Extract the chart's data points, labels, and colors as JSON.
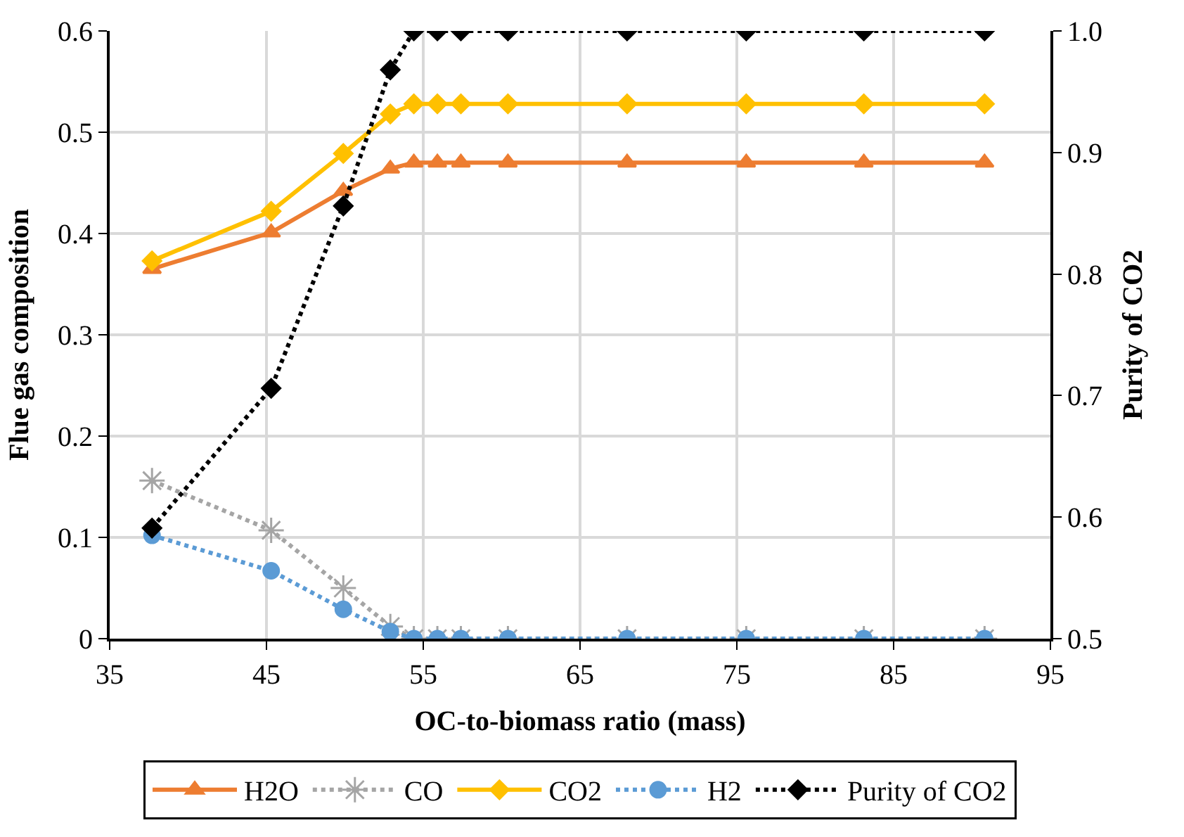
{
  "chart_data": {
    "type": "line",
    "xlabel": "OC-to-biomass ratio (mass)",
    "ylabel": "Flue gas composition",
    "y2label": "Purity of CO2",
    "x": [
      37.7,
      45.3,
      49.9,
      52.9,
      54.4,
      55.9,
      57.4,
      60.4,
      68.0,
      75.6,
      83.1,
      90.8
    ],
    "series": [
      {
        "name": "H2O",
        "color": "#ed7d31",
        "marker": "triangle",
        "line_style": "solid",
        "values": [
          0.365,
          0.401,
          0.442,
          0.464,
          0.47,
          0.47,
          0.47,
          0.47,
          0.47,
          0.47,
          0.47,
          0.47
        ]
      },
      {
        "name": "CO",
        "color": "#a5a5a5",
        "marker": "cross",
        "line_style": "dotted",
        "values": [
          0.156,
          0.107,
          0.05,
          0.012,
          0,
          0,
          0,
          0,
          0,
          0,
          0,
          0
        ]
      },
      {
        "name": "CO2",
        "color": "#ffc000",
        "marker": "diamond",
        "line_style": "solid",
        "values": [
          0.373,
          0.422,
          0.479,
          0.518,
          0.528,
          0.528,
          0.528,
          0.528,
          0.528,
          0.528,
          0.528,
          0.528
        ]
      },
      {
        "name": "H2",
        "color": "#5b9bd5",
        "marker": "circle",
        "line_style": "dotted",
        "values": [
          0.102,
          0.067,
          0.029,
          0.007,
          0,
          0,
          0,
          0,
          0,
          0,
          0,
          0
        ]
      },
      {
        "name": "Purity of CO2",
        "color": "#000000",
        "marker": "diamond",
        "line_style": "dotted",
        "axis": "y2",
        "values": [
          0.591,
          0.706,
          0.856,
          0.968,
          1.0,
          1.0,
          1.0,
          1.0,
          1.0,
          1.0,
          1.0,
          1.0
        ]
      }
    ],
    "xlim": [
      35,
      95
    ],
    "xticks": [
      35,
      45,
      55,
      65,
      75,
      85,
      95
    ],
    "ylim": [
      0,
      0.6
    ],
    "yticks": [
      {
        "value": 0,
        "label": "0"
      },
      0.1,
      0.2,
      0.3,
      0.4,
      0.5,
      0.6
    ],
    "y2lim": [
      0.5,
      1.0
    ],
    "y2ticks": [
      0.5,
      0.6,
      0.7,
      0.8,
      0.9,
      {
        "value": 1.0,
        "label": "1.0"
      }
    ],
    "grid": true,
    "legend": "bottom"
  }
}
